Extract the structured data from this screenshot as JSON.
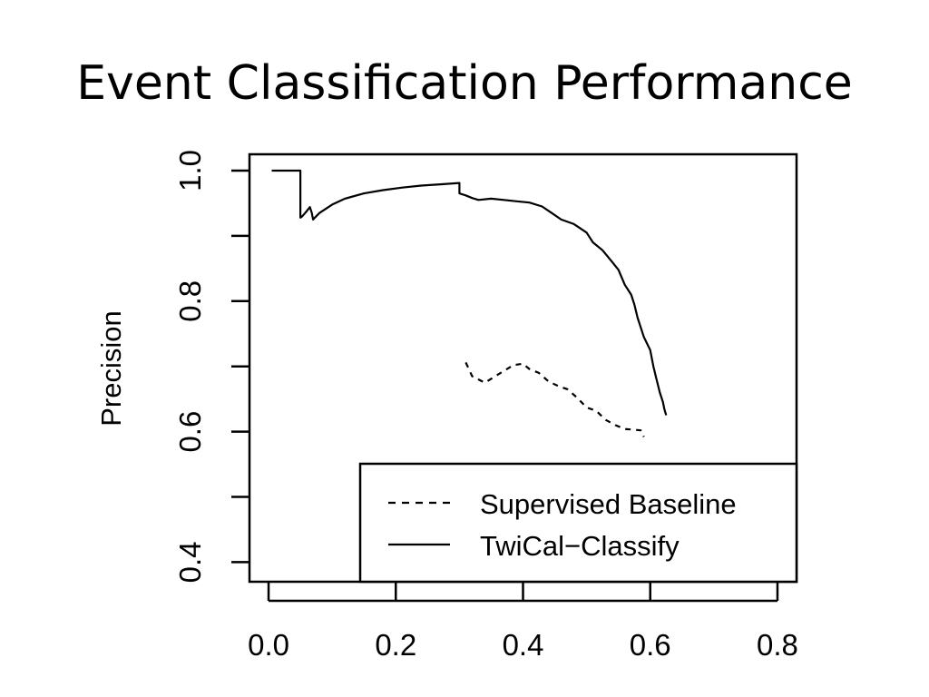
{
  "slide": {
    "title": "Event Classification Performance"
  },
  "chart_data": {
    "type": "line",
    "title": "",
    "xlabel": "",
    "ylabel": "Precision",
    "xlim": [
      -0.03,
      0.83
    ],
    "ylim": [
      0.37,
      1.025
    ],
    "xticks": [
      "0.0",
      "0.2",
      "0.4",
      "0.6",
      "0.8"
    ],
    "yticks": [
      "0.4",
      "0.6",
      "0.8",
      "1.0"
    ],
    "grid": false,
    "legend_position": "bottom-right",
    "series": [
      {
        "name": "Supervised Baseline",
        "line_style": "dashed",
        "color": "#000000",
        "x": [
          0.31,
          0.32,
          0.33,
          0.34,
          0.355,
          0.37,
          0.385,
          0.4,
          0.41,
          0.425,
          0.44,
          0.455,
          0.47,
          0.485,
          0.5,
          0.515,
          0.53,
          0.545,
          0.56,
          0.575,
          0.585,
          0.59
        ],
        "y": [
          0.706,
          0.685,
          0.68,
          0.675,
          0.684,
          0.693,
          0.702,
          0.704,
          0.696,
          0.69,
          0.677,
          0.67,
          0.665,
          0.652,
          0.637,
          0.632,
          0.618,
          0.61,
          0.604,
          0.603,
          0.602,
          0.592
        ]
      },
      {
        "name": "TwiCal−Classify",
        "line_style": "solid",
        "color": "#000000",
        "x": [
          0.005,
          0.05,
          0.05,
          0.053,
          0.06,
          0.065,
          0.068,
          0.07,
          0.08,
          0.1,
          0.12,
          0.15,
          0.18,
          0.21,
          0.24,
          0.27,
          0.3,
          0.3,
          0.31,
          0.32,
          0.33,
          0.35,
          0.37,
          0.39,
          0.41,
          0.43,
          0.445,
          0.46,
          0.48,
          0.5,
          0.51,
          0.525,
          0.54,
          0.55,
          0.56,
          0.57,
          0.575,
          0.58,
          0.59,
          0.6,
          0.605,
          0.61,
          0.615,
          0.62,
          0.622,
          0.625
        ],
        "y": [
          1.0,
          1.0,
          0.928,
          0.93,
          0.938,
          0.944,
          0.935,
          0.925,
          0.935,
          0.948,
          0.957,
          0.965,
          0.97,
          0.974,
          0.977,
          0.979,
          0.981,
          0.965,
          0.962,
          0.958,
          0.955,
          0.957,
          0.955,
          0.953,
          0.951,
          0.945,
          0.935,
          0.925,
          0.918,
          0.905,
          0.89,
          0.878,
          0.86,
          0.848,
          0.825,
          0.81,
          0.795,
          0.775,
          0.745,
          0.725,
          0.7,
          0.68,
          0.66,
          0.645,
          0.635,
          0.625
        ]
      }
    ]
  }
}
